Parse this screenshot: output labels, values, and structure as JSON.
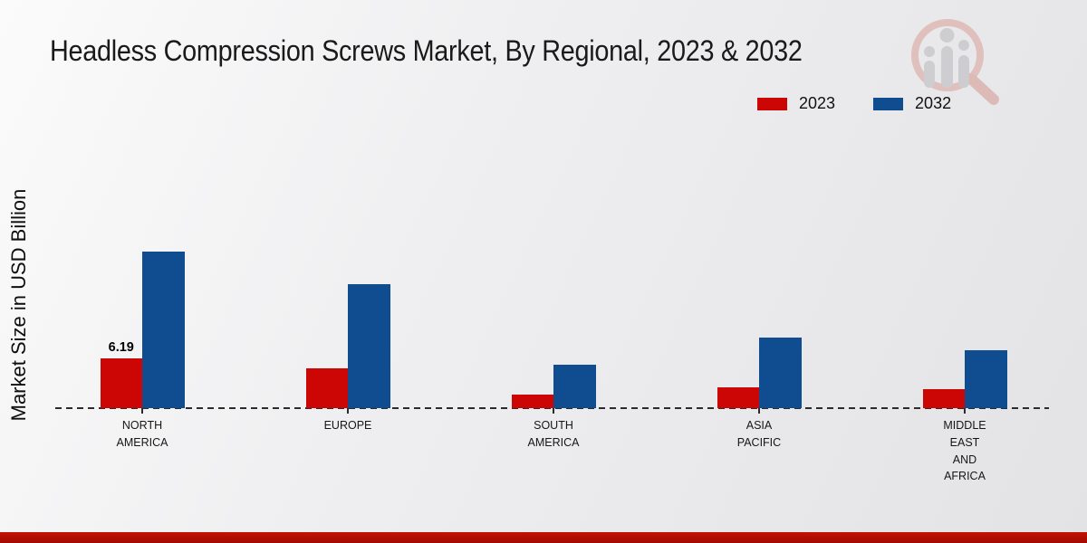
{
  "colors": {
    "series_2023": "#cc0505",
    "series_2032": "#0f4d90",
    "footer_bar": "#b00d02",
    "axis_line": "#2b2b2b"
  },
  "watermark": {
    "name": "magnifier-bar-chart-logo"
  },
  "chart_data": {
    "type": "bar",
    "title": "Headless Compression Screws Market, By Regional, 2023 & 2032",
    "xlabel": "",
    "ylabel": "Market Size in USD Billion",
    "ylim": [
      0,
      21
    ],
    "grid": false,
    "legend_position": "top-right",
    "axis_baseline_style": "dashed",
    "categories": [
      "NORTH AMERICA",
      "EUROPE",
      "SOUTH AMERICA",
      "ASIA PACIFIC",
      "MIDDLE EAST AND AFRICA"
    ],
    "categories_display": [
      [
        "NORTH",
        "AMERICA"
      ],
      [
        "EUROPE"
      ],
      [
        "SOUTH",
        "AMERICA"
      ],
      [
        "ASIA",
        "PACIFIC"
      ],
      [
        "MIDDLE",
        "EAST",
        "AND",
        "AFRICA"
      ]
    ],
    "series": [
      {
        "name": "2023",
        "color": "#cc0505",
        "values": [
          6.19,
          4.98,
          1.72,
          2.59,
          2.33
        ]
      },
      {
        "name": "2032",
        "color": "#0f4d90",
        "values": [
          19.45,
          15.45,
          5.4,
          8.75,
          7.24
        ]
      }
    ],
    "data_labels": [
      {
        "series": "2023",
        "category": "NORTH AMERICA",
        "text": "6.19"
      }
    ]
  }
}
